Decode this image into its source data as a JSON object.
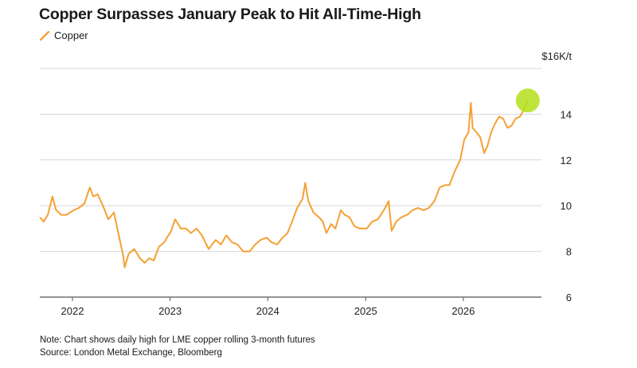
{
  "title": "Copper Surpasses January Peak to Hit All-Time-High",
  "legend": {
    "label": "Copper"
  },
  "notes": {
    "note": "Note: Chart shows daily high for LME copper rolling 3-month futures",
    "source": "Source: London Metal Exchange, Bloomberg"
  },
  "colors": {
    "series": "#f5a033",
    "highlight": "#b4e01a",
    "grid": "#d7d7d7",
    "axis": "#555555"
  },
  "chart_data": {
    "type": "line",
    "title": "Copper Surpasses January Peak to Hit All-Time-High",
    "ylabel_unit": "$16K/t",
    "ylim": [
      6,
      16
    ],
    "y_ticks": [
      6,
      8,
      10,
      12,
      14
    ],
    "y_tick_labels": [
      "6",
      "8",
      "10",
      "12",
      "14"
    ],
    "x_ticks": [
      "2022",
      "2023",
      "2024",
      "2025",
      "2026"
    ],
    "xlim": [
      "2021-09-01",
      "2026-10-20"
    ],
    "grid": true,
    "y_axis_position": "right",
    "legend_position": "top-left",
    "series": [
      {
        "name": "Copper",
        "points": [
          [
            "2021-09-01",
            9.5
          ],
          [
            "2021-09-15",
            9.3
          ],
          [
            "2021-10-01",
            9.6
          ],
          [
            "2021-10-18",
            10.4
          ],
          [
            "2021-11-01",
            9.8
          ],
          [
            "2021-11-20",
            9.6
          ],
          [
            "2021-12-10",
            9.6
          ],
          [
            "2022-01-05",
            9.8
          ],
          [
            "2022-01-25",
            9.9
          ],
          [
            "2022-02-15",
            10.1
          ],
          [
            "2022-03-07",
            10.8
          ],
          [
            "2022-03-20",
            10.4
          ],
          [
            "2022-04-05",
            10.5
          ],
          [
            "2022-04-25",
            10.0
          ],
          [
            "2022-05-15",
            9.4
          ],
          [
            "2022-06-05",
            9.7
          ],
          [
            "2022-06-25",
            8.6
          ],
          [
            "2022-07-10",
            7.8
          ],
          [
            "2022-07-15",
            7.3
          ],
          [
            "2022-07-30",
            7.9
          ],
          [
            "2022-08-20",
            8.1
          ],
          [
            "2022-09-10",
            7.7
          ],
          [
            "2022-09-28",
            7.5
          ],
          [
            "2022-10-15",
            7.7
          ],
          [
            "2022-11-01",
            7.6
          ],
          [
            "2022-11-20",
            8.2
          ],
          [
            "2022-12-10",
            8.4
          ],
          [
            "2023-01-05",
            8.9
          ],
          [
            "2023-01-20",
            9.4
          ],
          [
            "2023-02-10",
            9.0
          ],
          [
            "2023-03-01",
            9.0
          ],
          [
            "2023-03-20",
            8.8
          ],
          [
            "2023-04-10",
            9.0
          ],
          [
            "2023-04-30",
            8.7
          ],
          [
            "2023-05-25",
            8.1
          ],
          [
            "2023-06-20",
            8.5
          ],
          [
            "2023-07-10",
            8.3
          ],
          [
            "2023-07-30",
            8.7
          ],
          [
            "2023-08-20",
            8.4
          ],
          [
            "2023-09-10",
            8.3
          ],
          [
            "2023-10-01",
            8.0
          ],
          [
            "2023-10-25",
            8.0
          ],
          [
            "2023-11-15",
            8.3
          ],
          [
            "2023-12-05",
            8.5
          ],
          [
            "2023-12-28",
            8.6
          ],
          [
            "2024-01-15",
            8.4
          ],
          [
            "2024-02-05",
            8.3
          ],
          [
            "2024-02-25",
            8.6
          ],
          [
            "2024-03-15",
            8.8
          ],
          [
            "2024-04-01",
            9.3
          ],
          [
            "2024-04-20",
            9.9
          ],
          [
            "2024-05-10",
            10.3
          ],
          [
            "2024-05-20",
            11.0
          ],
          [
            "2024-06-01",
            10.2
          ],
          [
            "2024-06-20",
            9.7
          ],
          [
            "2024-07-10",
            9.5
          ],
          [
            "2024-07-25",
            9.3
          ],
          [
            "2024-08-07",
            8.8
          ],
          [
            "2024-08-25",
            9.2
          ],
          [
            "2024-09-10",
            9.0
          ],
          [
            "2024-09-30",
            9.8
          ],
          [
            "2024-10-15",
            9.6
          ],
          [
            "2024-11-01",
            9.5
          ],
          [
            "2024-11-20",
            9.1
          ],
          [
            "2024-12-10",
            9.0
          ],
          [
            "2025-01-05",
            9.0
          ],
          [
            "2025-01-25",
            9.3
          ],
          [
            "2025-02-15",
            9.4
          ],
          [
            "2025-03-10",
            9.8
          ],
          [
            "2025-03-28",
            10.2
          ],
          [
            "2025-04-08",
            8.9
          ],
          [
            "2025-04-25",
            9.3
          ],
          [
            "2025-05-15",
            9.5
          ],
          [
            "2025-06-05",
            9.6
          ],
          [
            "2025-06-25",
            9.8
          ],
          [
            "2025-07-15",
            9.9
          ],
          [
            "2025-08-05",
            9.8
          ],
          [
            "2025-08-25",
            9.9
          ],
          [
            "2025-09-15",
            10.2
          ],
          [
            "2025-10-05",
            10.8
          ],
          [
            "2025-10-25",
            10.9
          ],
          [
            "2025-11-10",
            10.9
          ],
          [
            "2025-11-30",
            11.5
          ],
          [
            "2025-12-20",
            12.0
          ],
          [
            "2026-01-05",
            12.9
          ],
          [
            "2026-01-20",
            13.2
          ],
          [
            "2026-01-29",
            14.5
          ],
          [
            "2026-02-05",
            13.4
          ],
          [
            "2026-02-20",
            13.2
          ],
          [
            "2026-03-05",
            13.0
          ],
          [
            "2026-03-20",
            12.3
          ],
          [
            "2026-04-01",
            12.6
          ],
          [
            "2026-04-15",
            13.2
          ],
          [
            "2026-04-30",
            13.6
          ],
          [
            "2026-05-15",
            13.9
          ],
          [
            "2026-05-30",
            13.8
          ],
          [
            "2026-06-15",
            13.4
          ],
          [
            "2026-06-30",
            13.5
          ],
          [
            "2026-07-15",
            13.8
          ],
          [
            "2026-08-01",
            13.9
          ],
          [
            "2026-08-15",
            14.2
          ],
          [
            "2026-08-30",
            14.6
          ]
        ]
      }
    ],
    "highlight": {
      "date": "2026-08-30",
      "value": 14.6
    }
  }
}
